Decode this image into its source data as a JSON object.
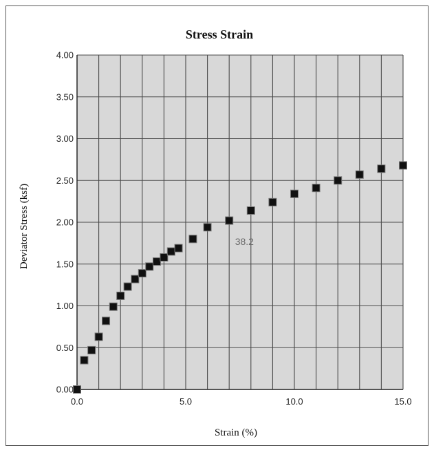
{
  "chart_data": {
    "type": "scatter",
    "title": "Stress Strain",
    "xlabel": "Strain (%)",
    "ylabel": "Deviator Stress (ksf)",
    "xlim": [
      0,
      15
    ],
    "ylim": [
      0,
      4
    ],
    "x_ticks": [
      "0.0",
      "5.0",
      "10.0",
      "15.0"
    ],
    "y_ticks": [
      "0.00",
      "0.50",
      "1.00",
      "1.50",
      "2.00",
      "2.50",
      "3.00",
      "3.50",
      "4.00"
    ],
    "x_gridlines_every": 1,
    "y_gridlines_every": 0.5,
    "grid": true,
    "legend": "none",
    "marker": "square",
    "marker_color": "#111111",
    "plot_background": "#d8d8d8",
    "annotation": {
      "text": "38.2",
      "x": 7.7,
      "y": 1.77
    },
    "series": [
      {
        "x": [
          0,
          0.33,
          0.67,
          1.0,
          1.33,
          1.67,
          2.0,
          2.33,
          2.67,
          3.0,
          3.33,
          3.67,
          4.0,
          4.33,
          4.67,
          5.33,
          6.0,
          7.0,
          8.0,
          9.0,
          10.0,
          11.0,
          12.0,
          13.0,
          14.0,
          15.0
        ],
        "y": [
          0.0,
          0.35,
          0.47,
          0.63,
          0.82,
          0.99,
          1.12,
          1.23,
          1.32,
          1.39,
          1.47,
          1.53,
          1.58,
          1.65,
          1.69,
          1.8,
          1.94,
          2.02,
          2.14,
          2.24,
          2.34,
          2.41,
          2.5,
          2.57,
          2.64,
          2.68
        ]
      }
    ]
  }
}
